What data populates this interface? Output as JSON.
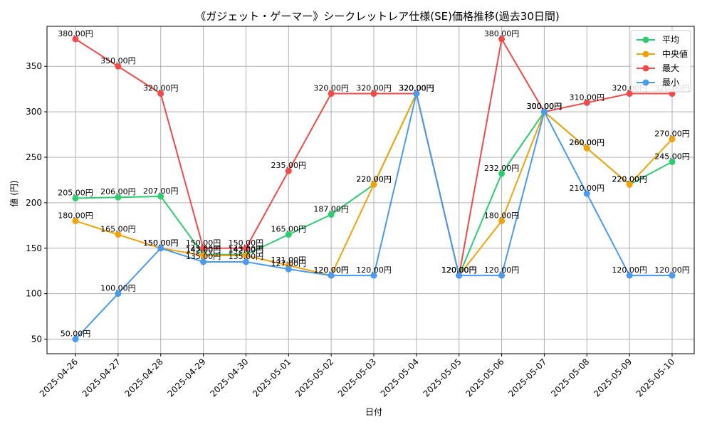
{
  "chart_data": {
    "type": "line",
    "title": "《ガジェット・ゲーマー》シークレットレア仕様(SE)価格推移(過去30日間)",
    "xlabel": "日付",
    "ylabel": "値 (円)",
    "ylim": [
      34,
      394
    ],
    "yticks": [
      50,
      100,
      150,
      200,
      250,
      300,
      350
    ],
    "grid": true,
    "legend_position": "top-right",
    "categories": [
      "2025-04-26",
      "2025-04-27",
      "2025-04-28",
      "2025-04-29",
      "2025-04-30",
      "2025-05-01",
      "2025-05-02",
      "2025-05-03",
      "2025-05-04",
      "2025-05-05",
      "2025-05-06",
      "2025-05-07",
      "2025-05-08",
      "2025-05-09",
      "2025-05-10"
    ],
    "value_suffix": "円",
    "series": [
      {
        "name": "平均",
        "color": "#2ecc71",
        "values": [
          205,
          206,
          207,
          143,
          143,
          165,
          187,
          220,
          320,
          120,
          232,
          300,
          260,
          220,
          245
        ]
      },
      {
        "name": "中央値",
        "color": "#f0a30a",
        "values": [
          180,
          165,
          150,
          142,
          142,
          131,
          120,
          220,
          320,
          120,
          180,
          300,
          260,
          220,
          270
        ]
      },
      {
        "name": "最大",
        "color": "#f04a4a",
        "values": [
          380,
          350,
          320,
          150,
          150,
          235,
          320,
          320,
          320,
          120,
          380,
          300,
          310,
          320,
          320
        ]
      },
      {
        "name": "最小",
        "color": "#4a9af0",
        "values": [
          50,
          100,
          150,
          135,
          135,
          127,
          120,
          120,
          320,
          120,
          120,
          300,
          210,
          120,
          120
        ]
      }
    ]
  }
}
